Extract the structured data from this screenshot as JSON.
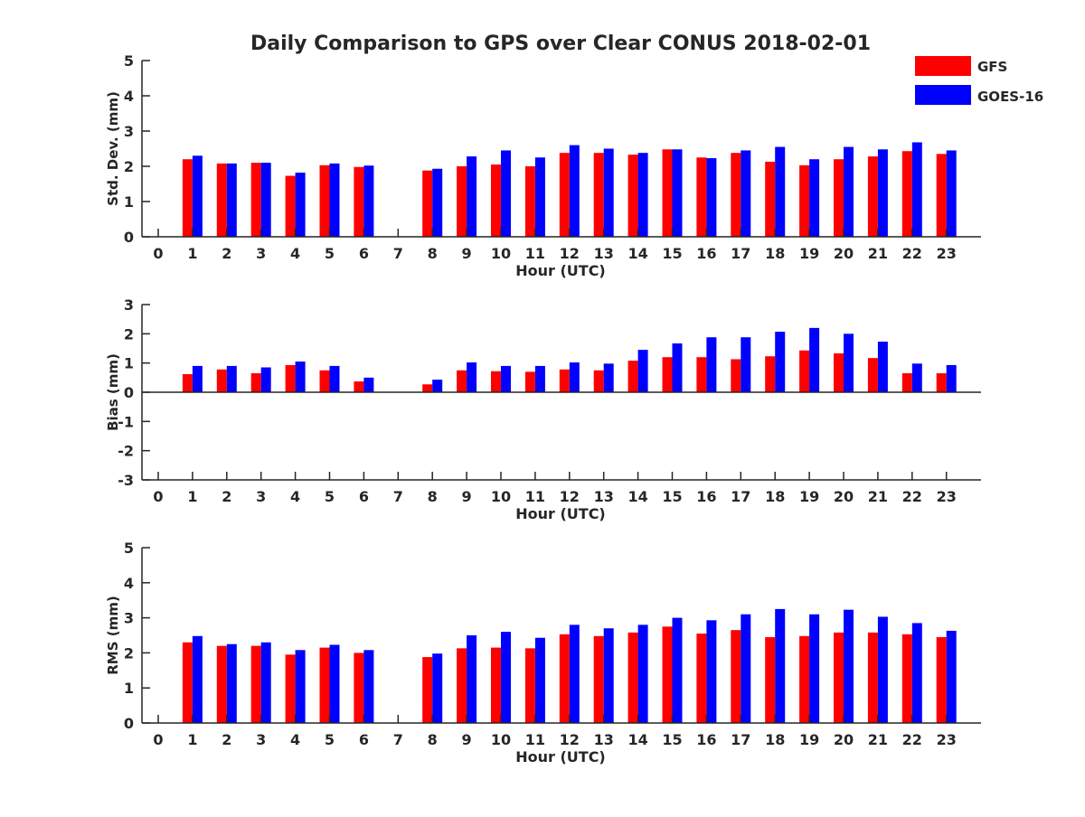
{
  "colors": {
    "gfs": "#ff0000",
    "goes": "#0000ff",
    "axis": "#262626"
  },
  "chart_data": {
    "type": "bar",
    "title": "Daily Comparison to GPS over Clear CONUS 2018-02-01",
    "legend": {
      "placement": "top-right",
      "entries": [
        "GFS",
        "GOES-16"
      ]
    },
    "categories": [
      "0",
      "1",
      "2",
      "3",
      "4",
      "5",
      "6",
      "7",
      "8",
      "9",
      "10",
      "11",
      "12",
      "13",
      "14",
      "15",
      "16",
      "17",
      "18",
      "19",
      "20",
      "21",
      "22",
      "23"
    ],
    "panels": [
      {
        "ylabel": "Std. Dev. (mm)",
        "xlabel": "Hour (UTC)",
        "ylim": [
          0,
          5
        ],
        "yticks": [
          "0",
          "1",
          "2",
          "3",
          "4",
          "5"
        ],
        "series": [
          {
            "name": "GFS",
            "values": [
              null,
              2.2,
              2.08,
              2.1,
              1.73,
              2.03,
              1.98,
              null,
              1.88,
              2.0,
              2.05,
              2.0,
              2.38,
              2.38,
              2.33,
              2.48,
              2.25,
              2.38,
              2.13,
              2.03,
              2.2,
              2.28,
              2.43,
              2.35
            ]
          },
          {
            "name": "GOES-16",
            "values": [
              null,
              2.3,
              2.08,
              2.1,
              1.82,
              2.08,
              2.02,
              null,
              1.93,
              2.28,
              2.45,
              2.25,
              2.6,
              2.5,
              2.38,
              2.48,
              2.23,
              2.45,
              2.55,
              2.2,
              2.55,
              2.48,
              2.68,
              2.45
            ]
          }
        ]
      },
      {
        "ylabel": "Bias (mm)",
        "xlabel": "Hour (UTC)",
        "ylim": [
          -3,
          3
        ],
        "yticks": [
          "-3",
          "-2",
          "-1",
          "0",
          "1",
          "2",
          "3"
        ],
        "series": [
          {
            "name": "GFS",
            "values": [
              null,
              0.62,
              0.78,
              0.65,
              0.93,
              0.75,
              0.37,
              null,
              0.27,
              0.75,
              0.72,
              0.7,
              0.78,
              0.75,
              1.08,
              1.2,
              1.2,
              1.13,
              1.23,
              1.43,
              1.33,
              1.17,
              0.65,
              0.65
            ]
          },
          {
            "name": "GOES-16",
            "values": [
              null,
              0.9,
              0.9,
              0.85,
              1.05,
              0.9,
              0.5,
              null,
              0.43,
              1.02,
              0.9,
              0.9,
              1.02,
              0.98,
              1.45,
              1.67,
              1.88,
              1.88,
              2.07,
              2.2,
              2.0,
              1.73,
              0.98,
              0.93
            ]
          }
        ]
      },
      {
        "ylabel": "RMS (mm)",
        "xlabel": "Hour (UTC)",
        "ylim": [
          0,
          5
        ],
        "yticks": [
          "0",
          "1",
          "2",
          "3",
          "4",
          "5"
        ],
        "series": [
          {
            "name": "GFS",
            "values": [
              null,
              2.3,
              2.2,
              2.2,
              1.95,
              2.15,
              2.0,
              null,
              1.88,
              2.13,
              2.15,
              2.13,
              2.53,
              2.48,
              2.58,
              2.75,
              2.55,
              2.65,
              2.45,
              2.48,
              2.58,
              2.58,
              2.53,
              2.45
            ]
          },
          {
            "name": "GOES-16",
            "values": [
              null,
              2.48,
              2.25,
              2.3,
              2.08,
              2.23,
              2.08,
              null,
              1.98,
              2.5,
              2.6,
              2.43,
              2.8,
              2.7,
              2.8,
              3.0,
              2.93,
              3.1,
              3.25,
              3.1,
              3.23,
              3.03,
              2.85,
              2.63
            ]
          }
        ]
      }
    ]
  }
}
